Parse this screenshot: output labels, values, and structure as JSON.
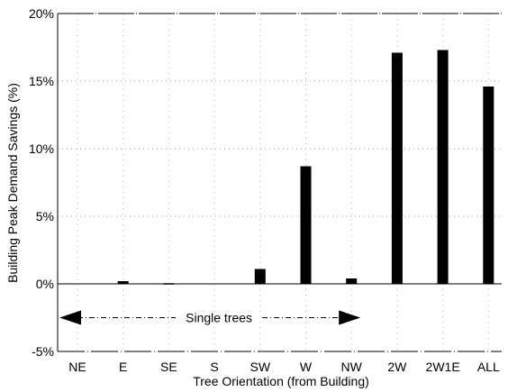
{
  "chart_data": {
    "type": "bar",
    "categories": [
      "NE",
      "E",
      "SE",
      "S",
      "SW",
      "W",
      "NW",
      "2W",
      "2W1E",
      "ALL"
    ],
    "values": [
      0.0,
      0.2,
      0.05,
      0.0,
      1.1,
      8.7,
      0.4,
      17.1,
      17.3,
      14.6
    ],
    "title": "",
    "xlabel": "Tree Orientation (from Building)",
    "ylabel": "Building Peak Demand Savings (%)",
    "ylim": [
      -5,
      20
    ],
    "yticks": [
      -5,
      0,
      5,
      10,
      15,
      20
    ],
    "ytick_labels": [
      "-5%",
      "0%",
      "5%",
      "10%",
      "15%",
      "20%"
    ],
    "grid": true,
    "color": "#000000",
    "annotation": {
      "text": "Single trees",
      "spans": [
        "NE",
        "NW"
      ],
      "y": -2.5
    }
  }
}
